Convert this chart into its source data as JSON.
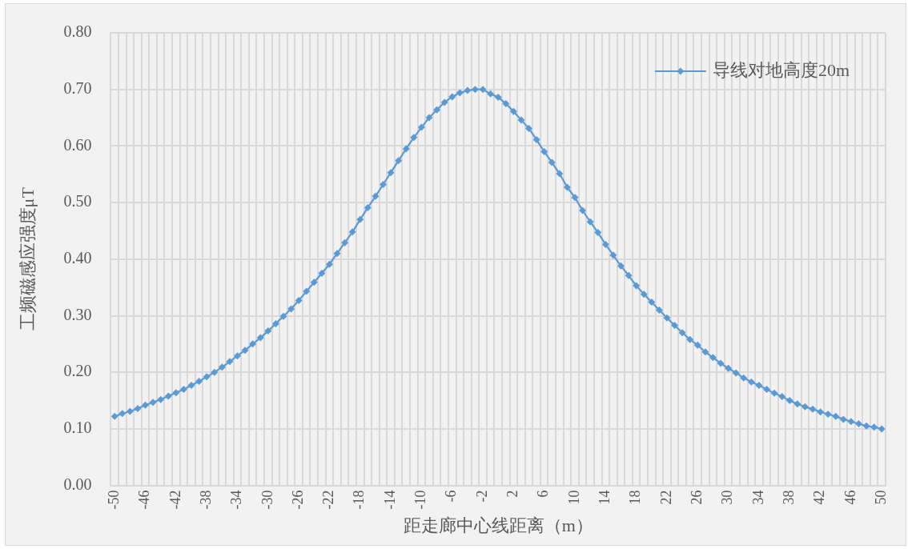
{
  "chart_data": {
    "type": "line",
    "xlabel": "距走廊中心线距离（m）",
    "ylabel": "工频磁感应强度μT",
    "categories": [
      "-50",
      null,
      null,
      null,
      "-46",
      null,
      null,
      null,
      "-42",
      null,
      null,
      null,
      "-38",
      null,
      null,
      null,
      "-34",
      null,
      null,
      null,
      "-30",
      null,
      null,
      null,
      "-26",
      null,
      null,
      null,
      "-22",
      null,
      null,
      null,
      "-18",
      null,
      null,
      null,
      "-14",
      null,
      null,
      null,
      "-10",
      null,
      null,
      null,
      "-6",
      null,
      null,
      null,
      "-2",
      null,
      null,
      null,
      "2",
      null,
      null,
      null,
      "6",
      null,
      null,
      null,
      "10",
      null,
      null,
      null,
      "14",
      null,
      null,
      null,
      "18",
      null,
      null,
      null,
      "22",
      null,
      null,
      null,
      "26",
      null,
      null,
      null,
      "30",
      null,
      null,
      null,
      "34",
      null,
      null,
      null,
      "38",
      null,
      null,
      null,
      "42",
      null,
      null,
      null,
      "46",
      null,
      null,
      null,
      "50"
    ],
    "series": [
      {
        "name": "导线对地高度20m",
        "color": "#5b9bd5",
        "values": [
          0.122,
          0.127,
          0.131,
          0.136,
          0.142,
          0.147,
          0.152,
          0.158,
          0.164,
          0.17,
          0.177,
          0.184,
          0.192,
          0.2,
          0.209,
          0.219,
          0.229,
          0.239,
          0.25,
          0.261,
          0.273,
          0.286,
          0.299,
          0.312,
          0.327,
          0.343,
          0.359,
          0.375,
          0.391,
          0.41,
          0.429,
          0.448,
          0.47,
          0.491,
          0.511,
          0.532,
          0.553,
          0.574,
          0.595,
          0.615,
          0.633,
          0.65,
          0.664,
          0.677,
          0.687,
          0.694,
          0.698,
          0.7,
          0.7,
          0.692,
          0.686,
          0.675,
          0.661,
          0.646,
          0.631,
          0.611,
          0.59,
          0.571,
          0.551,
          0.527,
          0.509,
          0.486,
          0.466,
          0.447,
          0.426,
          0.407,
          0.388,
          0.371,
          0.353,
          0.338,
          0.324,
          0.31,
          0.296,
          0.283,
          0.27,
          0.258,
          0.248,
          0.236,
          0.226,
          0.216,
          0.207,
          0.199,
          0.19,
          0.183,
          0.177,
          0.17,
          0.163,
          0.157,
          0.15,
          0.144,
          0.139,
          0.135,
          0.13,
          0.126,
          0.122,
          0.117,
          0.113,
          0.109,
          0.105,
          0.103,
          0.1
        ]
      }
    ],
    "ylim": [
      0,
      0.8
    ],
    "yticks": [
      {
        "value": 0,
        "label": "0.00"
      },
      {
        "value": 0.1,
        "label": "0.10"
      },
      {
        "value": 0.2,
        "label": "0.20"
      },
      {
        "value": 0.3,
        "label": "0.30"
      },
      {
        "value": 0.4,
        "label": "0.40"
      },
      {
        "value": 0.5,
        "label": "0.50"
      },
      {
        "value": 0.6,
        "label": "0.60"
      },
      {
        "value": 0.7,
        "label": "0.70"
      },
      {
        "value": 0.8,
        "label": "0.80"
      }
    ],
    "grid": true,
    "legend": "top right",
    "marker": "diamond",
    "line_style": "solid"
  }
}
